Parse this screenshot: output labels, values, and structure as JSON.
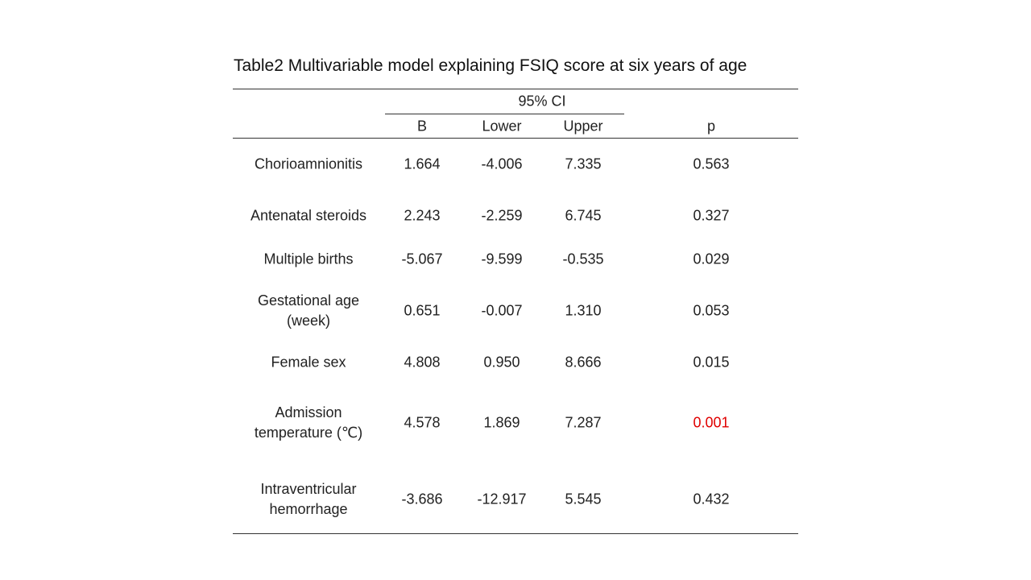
{
  "title": "Table2 Multivariable model explaining FSIQ score at six years of age",
  "header": {
    "group_label": "95% CI",
    "col_b": "B",
    "col_lower": "Lower",
    "col_upper": "Upper",
    "col_p": "p"
  },
  "rows": [
    {
      "label_line1": "Chorioamnionitis",
      "label_line2": "",
      "b": "1.664",
      "lower": "-4.006",
      "upper": "7.335",
      "p": "0.563"
    },
    {
      "label_line1": "Antenatal steroids",
      "label_line2": "",
      "b": "2.243",
      "lower": "-2.259",
      "upper": "6.745",
      "p": "0.327"
    },
    {
      "label_line1": "Multiple births",
      "label_line2": "",
      "b": "-5.067",
      "lower": "-9.599",
      "upper": "-0.535",
      "p": "0.029"
    },
    {
      "label_line1": "Gestational age",
      "label_line2": "(week)",
      "b": "0.651",
      "lower": "-0.007",
      "upper": "1.310",
      "p": "0.053"
    },
    {
      "label_line1": "Female sex",
      "label_line2": "",
      "b": "4.808",
      "lower": "0.950",
      "upper": "8.666",
      "p": "0.015"
    },
    {
      "label_line1": "Admission",
      "label_line2": "temperature (℃)",
      "b": "4.578",
      "lower": "1.869",
      "upper": "7.287",
      "p": "0.001"
    },
    {
      "label_line1": "Intraventricular",
      "label_line2": "hemorrhage",
      "b": "-3.686",
      "lower": "-12.917",
      "upper": "5.545",
      "p": "0.432"
    }
  ],
  "colors": {
    "text": "#222222",
    "rule": "#333333",
    "highlight_p": "#e00000"
  }
}
